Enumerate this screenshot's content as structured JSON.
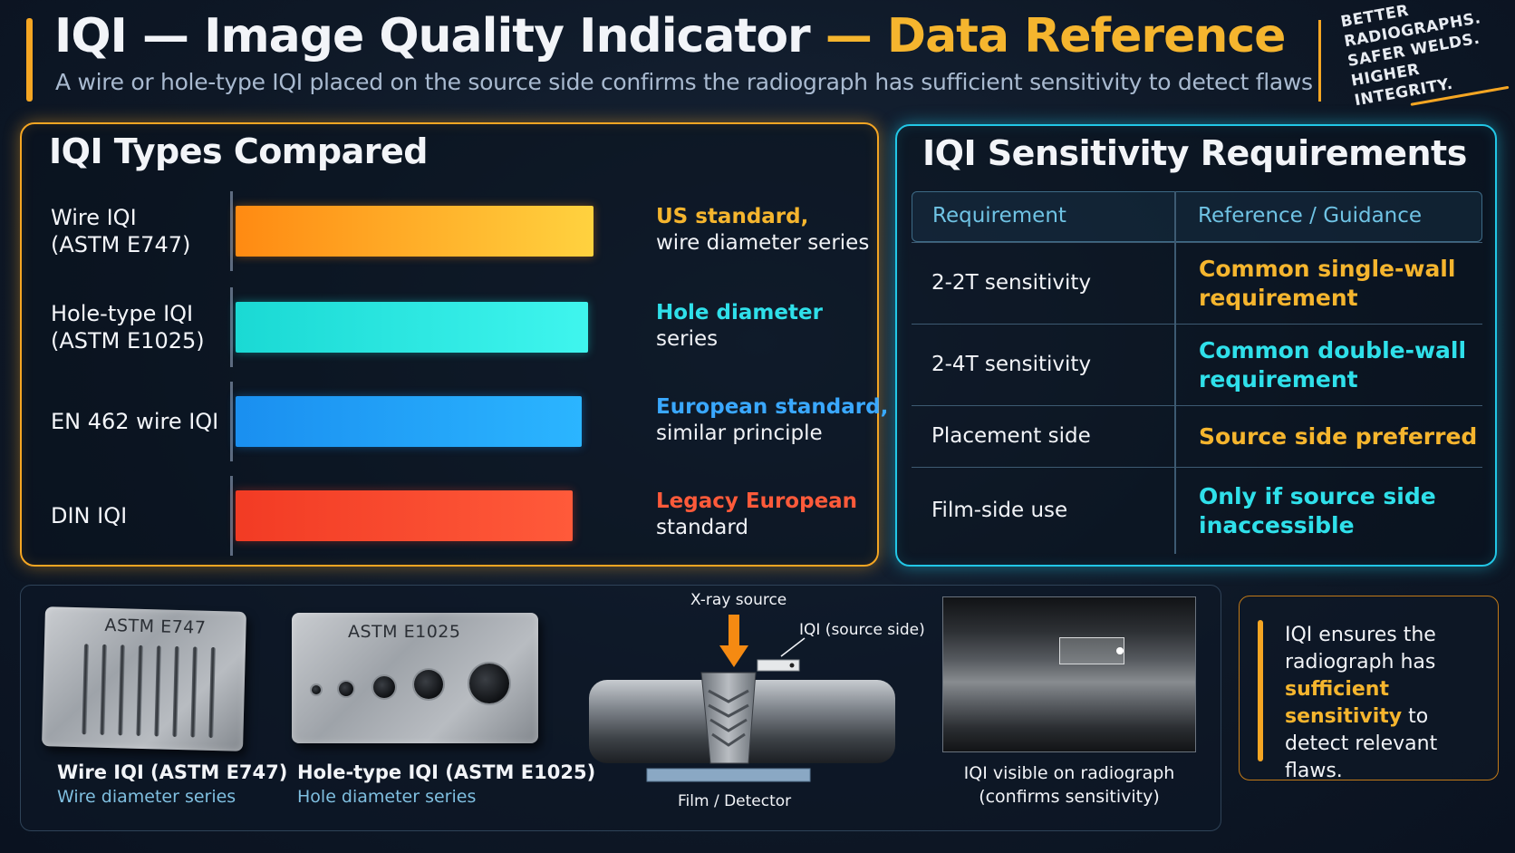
{
  "header": {
    "title_part1": "IQI — Image Quality Indicator ",
    "title_part2": "— Data Reference",
    "subtitle": "A wire or hole-type IQI placed on the source side confirms the radiograph has sufficient sensitivity to detect flaws",
    "tagline": [
      "BETTER",
      "RADIOGRAPHS.",
      "SAFER WELDS.",
      "HIGHER INTEGRITY."
    ]
  },
  "types_panel": {
    "title": "IQI Types Compared",
    "rows": [
      {
        "label_1": "Wire IQI",
        "label_2": "(ASTM E747)",
        "desc_1": "US standard,",
        "desc_2": "wire diameter series",
        "bar_fraction": 0.886,
        "bar_color_start": "#ff8a12",
        "bar_color_end": "#ffd23f",
        "desc_color": "#f5b52e"
      },
      {
        "label_1": "Hole-type IQI",
        "label_2": "(ASTM E1025)",
        "desc_1": "Hole diameter",
        "desc_2": "series",
        "bar_fraction": 0.872,
        "bar_color_start": "#1ad9d4",
        "bar_color_end": "#3ff5ee",
        "desc_color": "#2fe0ea"
      },
      {
        "label_1": "EN 462 wire IQI",
        "label_2": "",
        "desc_1": "European standard,",
        "desc_2": "similar principle",
        "bar_fraction": 0.857,
        "bar_color_start": "#1a8ff0",
        "bar_color_end": "#2bb5ff",
        "desc_color": "#3aa8ff"
      },
      {
        "label_1": "DIN IQI",
        "label_2": "",
        "desc_1": "Legacy European",
        "desc_2": "standard",
        "bar_fraction": 0.833,
        "bar_color_start": "#f23b24",
        "bar_color_end": "#ff5a3a",
        "desc_color": "#ff5a3a"
      }
    ]
  },
  "sensitivity_panel": {
    "title": "IQI Sensitivity Requirements",
    "col_1": "Requirement",
    "col_2": "Reference / Guidance",
    "rows": [
      {
        "requirement": "2-2T sensitivity",
        "ref_1": "Common single-wall",
        "ref_2": "requirement",
        "color": "#f5b52e"
      },
      {
        "requirement": "2-4T sensitivity",
        "ref_1": "Common double-wall",
        "ref_2": "requirement",
        "color": "#2fe0ea"
      },
      {
        "requirement": "Placement side",
        "ref_1": "Source side preferred",
        "ref_2": "",
        "color": "#f5b52e"
      },
      {
        "requirement": "Film-side use",
        "ref_1": "Only if source side",
        "ref_2": "inaccessible",
        "color": "#2fe0ea"
      }
    ]
  },
  "bottom": {
    "wire_plate_text": "ASTM E747",
    "wire_caption": "Wire IQI (ASTM E747)",
    "wire_sub": "Wire diameter series",
    "hole_plate_text": "ASTM E1025",
    "hole_caption": "Hole-type IQI (ASTM E1025)",
    "hole_sub": "Hole diameter series",
    "xray_label": "X-ray source",
    "iqi_label": "IQI (source side)",
    "film_label": "Film / Detector",
    "radio_caption_1": "IQI visible on radiograph",
    "radio_caption_2": "(confirms sensitivity)"
  },
  "callout": {
    "text_1": "IQI ensures the radiograph has ",
    "highlight": "sufficient sensitivity",
    "text_2": " to detect relevant flaws."
  }
}
